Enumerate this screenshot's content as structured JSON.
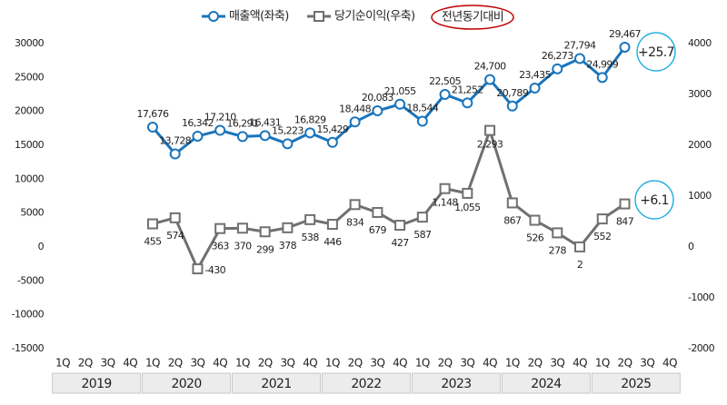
{
  "chart_data": {
    "type": "line",
    "categories": [
      "1Q",
      "2Q",
      "3Q",
      "4Q",
      "1Q",
      "2Q",
      "3Q",
      "4Q",
      "1Q",
      "2Q",
      "3Q",
      "4Q",
      "1Q",
      "2Q",
      "3Q",
      "4Q",
      "1Q",
      "2Q",
      "3Q",
      "4Q",
      "1Q",
      "2Q",
      "3Q",
      "4Q",
      "1Q",
      "2Q",
      "3Q",
      "4Q"
    ],
    "years": [
      "2019",
      "2020",
      "2021",
      "2022",
      "2023",
      "2024",
      "2025"
    ],
    "series": [
      {
        "name": "매출액(좌축)",
        "color": "#1a75bc",
        "marker": "circle",
        "values": [
          null,
          null,
          null,
          null,
          17676,
          13728,
          16342,
          17210,
          16291,
          16431,
          15223,
          16829,
          15429,
          18448,
          20083,
          21055,
          18544,
          22505,
          21252,
          24700,
          20789,
          23435,
          26273,
          27794,
          24999,
          29467,
          null,
          null
        ],
        "value_labels": [
          null,
          null,
          null,
          null,
          "17,676",
          "13,728",
          "16,342",
          "17,210",
          "16,291",
          "16,431",
          "15,223",
          "16,829",
          "15,429",
          "18,448",
          "20,083",
          "21,055",
          "18,544",
          "22,505",
          "21,252",
          "24,700",
          "20,789",
          "23,435",
          "26,273",
          "27,794",
          "24,999",
          "29,467",
          null,
          null
        ]
      },
      {
        "name": "당기순이익(우축)",
        "color": "#707070",
        "marker": "square",
        "axis": "y2",
        "values": [
          null,
          null,
          null,
          null,
          455,
          574,
          -430,
          363,
          370,
          299,
          378,
          538,
          446,
          834,
          679,
          427,
          587,
          1148,
          1055,
          2293,
          867,
          526,
          278,
          2,
          552,
          847,
          null,
          null
        ],
        "value_labels": [
          null,
          null,
          null,
          null,
          "455",
          "574",
          "-430",
          "363",
          "370",
          "299",
          "378",
          "538",
          "446",
          "834",
          "679",
          "427",
          "587",
          "1,148",
          "1,055",
          "2,293",
          "867",
          "526",
          "278",
          "2",
          "552",
          "847",
          null,
          null
        ]
      }
    ],
    "ylim": [
      -15000,
      30000
    ],
    "yticks": [
      30000,
      25000,
      20000,
      15000,
      10000,
      5000,
      0,
      -5000,
      -10000,
      -15000
    ],
    "y2lim": [
      -2000,
      4000
    ],
    "y2ticks": [
      4000,
      3000,
      2000,
      1000,
      0,
      -1000,
      -2000
    ],
    "legend_note": "전년동기대비",
    "annotations": [
      "+25.7",
      "+6.1"
    ],
    "grid": false
  }
}
